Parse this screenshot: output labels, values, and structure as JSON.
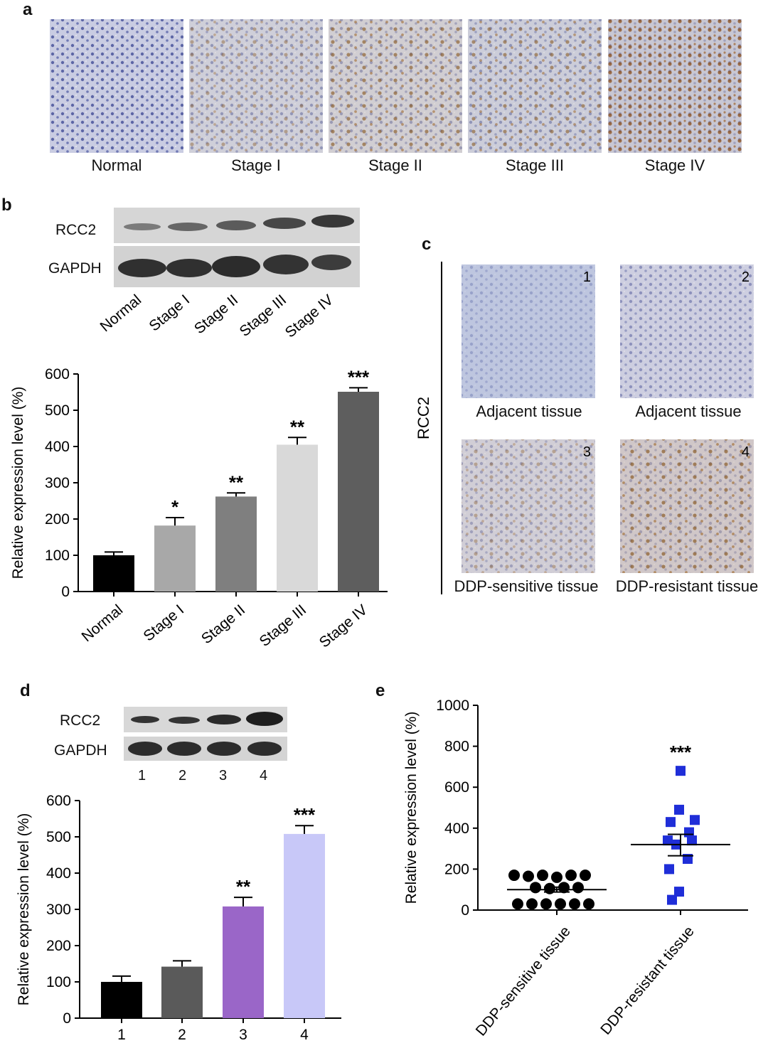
{
  "panels": {
    "a": {
      "label": "a",
      "captions": [
        "Normal",
        "Stage I",
        "Stage II",
        "Stage III",
        "Stage IV"
      ]
    },
    "b": {
      "label": "b",
      "blot_rows": [
        "RCC2",
        "GAPDH"
      ],
      "lane_labels": [
        "Normal",
        "Stage I",
        "Stage II",
        "Stage III",
        "Stage IV"
      ]
    },
    "c": {
      "label": "c",
      "side_label": "RCC2",
      "numbers": [
        "1",
        "2",
        "3",
        "4"
      ],
      "captions": [
        "Adjacent tissue",
        "Adjacent tissue",
        "DDP-sensitive tissue",
        "DDP-resistant tissue"
      ]
    },
    "d": {
      "label": "d",
      "blot_rows": [
        "RCC2",
        "GAPDH"
      ],
      "lane_labels": [
        "1",
        "2",
        "3",
        "4"
      ]
    },
    "e": {
      "label": "e"
    }
  },
  "colors": {
    "stain_blue": "#6f78b4",
    "stain_brown": "#9a6a2e",
    "blot_bg": "#d6d6d6",
    "band": "#3a3a3a",
    "bar_normal": "#000000",
    "bar_stage1": "#a8a8a8",
    "bar_stage2": "#7f7f7f",
    "bar_stage3": "#d9d9d9",
    "bar_stage4": "#5e5e5e",
    "bar_d1": "#000000",
    "bar_d2": "#5a5a5a",
    "bar_d3": "#9a66c8",
    "bar_d4": "#c8c8f8",
    "dot_sensitive": "#000000",
    "square_resistant": "#1f2ed8"
  },
  "chart_data": [
    {
      "id": "b",
      "type": "bar",
      "categories": [
        "Normal",
        "Stage I",
        "Stage II",
        "Stage III",
        "Stage IV"
      ],
      "values": [
        100,
        182,
        262,
        405,
        551
      ],
      "errors": [
        9,
        22,
        10,
        20,
        11
      ],
      "significance": [
        "",
        "*",
        "**",
        "**",
        "***"
      ],
      "ylabel": "Relative expression level (%)",
      "ylim": [
        0,
        600
      ],
      "yticks": [
        0,
        100,
        200,
        300,
        400,
        500,
        600
      ]
    },
    {
      "id": "d",
      "type": "bar",
      "categories": [
        "1",
        "2",
        "3",
        "4"
      ],
      "values": [
        100,
        142,
        308,
        508
      ],
      "errors": [
        16,
        16,
        25,
        23
      ],
      "significance": [
        "",
        "",
        "**",
        "***"
      ],
      "ylabel": "Relative expression level (%)",
      "ylim": [
        0,
        600
      ],
      "yticks": [
        0,
        100,
        200,
        300,
        400,
        500,
        600
      ]
    },
    {
      "id": "e",
      "type": "scatter",
      "categories": [
        "DDP-sensitive tissue",
        "DDP-resistant tissue"
      ],
      "series": [
        {
          "group": "DDP-sensitive tissue",
          "values": [
            170,
            165,
            170,
            160,
            170,
            170,
            110,
            105,
            110,
            110,
            30,
            30,
            30,
            30,
            30,
            30
          ],
          "mean": 100,
          "sem_low": 88,
          "sem_high": 112
        },
        {
          "group": "DDP-resistant tissue",
          "values": [
            680,
            490,
            440,
            430,
            380,
            340,
            340,
            320,
            250,
            200,
            90,
            50
          ],
          "mean": 320,
          "sem_low": 265,
          "sem_high": 370
        }
      ],
      "significance": [
        "",
        "***"
      ],
      "ylabel": "Relative expression level (%)",
      "ylim": [
        0,
        1000
      ],
      "yticks": [
        0,
        200,
        400,
        600,
        800,
        1000
      ]
    }
  ]
}
